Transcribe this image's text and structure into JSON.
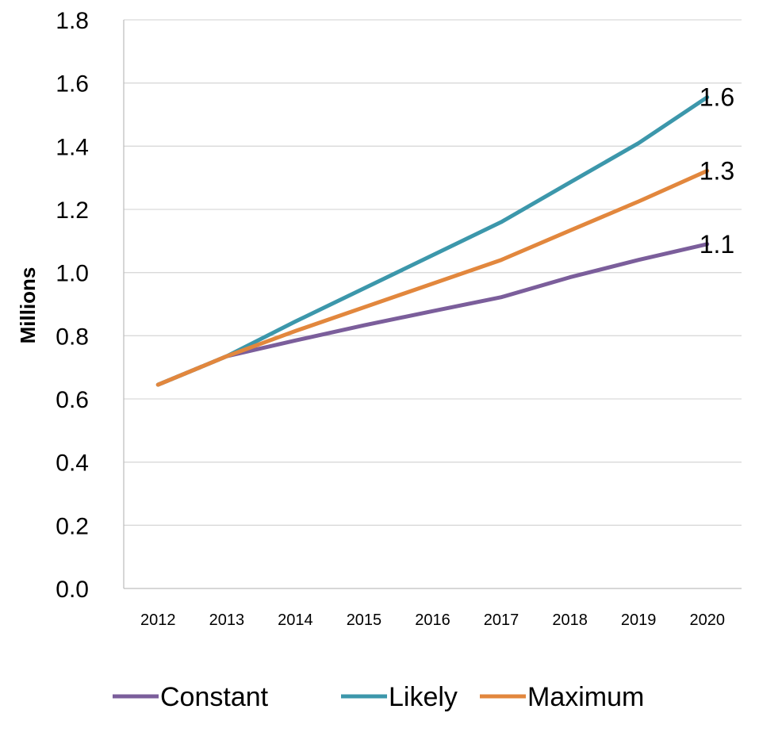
{
  "chart_data": {
    "type": "line",
    "title": "",
    "xlabel": "",
    "ylabel": "Millions",
    "ylim": [
      0,
      1.8
    ],
    "y_ticks": [
      "0.0",
      "0.2",
      "0.4",
      "0.6",
      "0.8",
      "1.0",
      "1.2",
      "1.4",
      "1.6",
      "1.8"
    ],
    "grid": "horizontal",
    "legend_position": "bottom",
    "x": [
      "2012",
      "2013",
      "2014",
      "2015",
      "2016",
      "2017",
      "2018",
      "2019",
      "2020"
    ],
    "series": [
      {
        "name": "Constant",
        "color": "#7B5E9B",
        "values": [
          0.645,
          0.735,
          0.785,
          0.833,
          0.878,
          0.922,
          0.985,
          1.04,
          1.09
        ],
        "end_label": "1.1"
      },
      {
        "name": "Likely",
        "color": "#3C97AB",
        "values": [
          0.645,
          0.735,
          0.845,
          0.95,
          1.055,
          1.16,
          1.285,
          1.41,
          1.555
        ],
        "end_label": "1.6"
      },
      {
        "name": "Maximum",
        "color": "#E2873D",
        "values": [
          0.645,
          0.735,
          0.815,
          0.89,
          0.965,
          1.04,
          1.133,
          1.225,
          1.322
        ],
        "end_label": "1.3"
      }
    ]
  }
}
